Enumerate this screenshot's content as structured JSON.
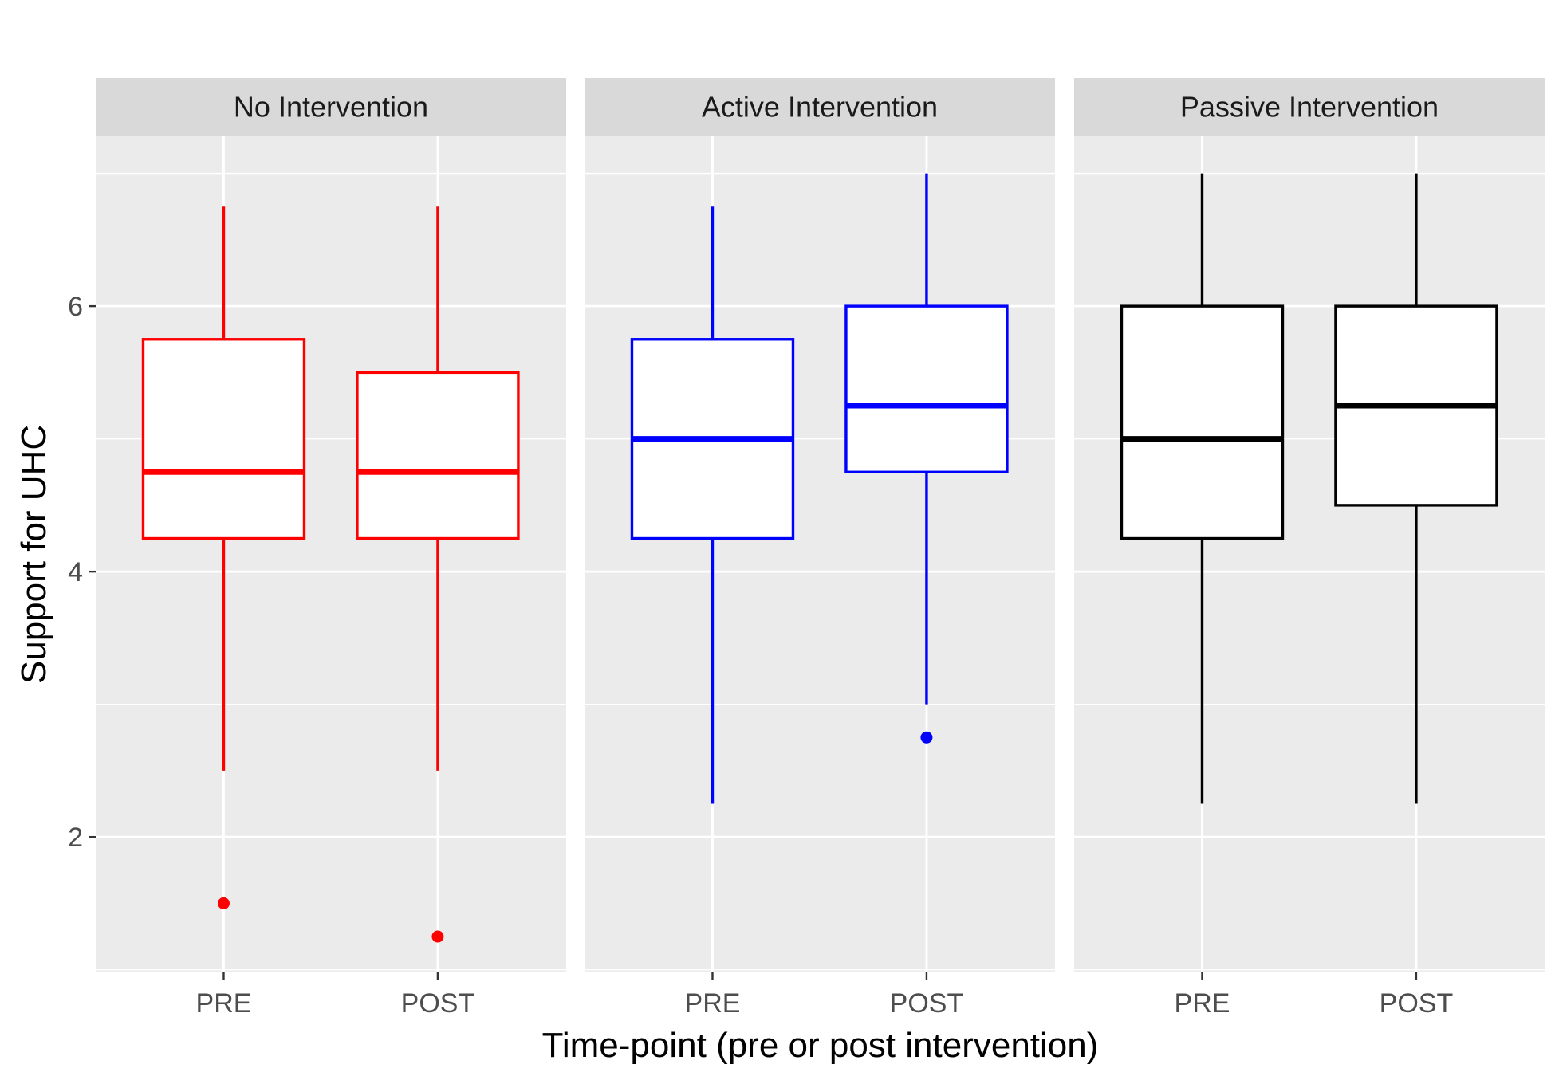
{
  "chart_data": {
    "type": "boxplot",
    "xlabel": "Time-point (pre or post intervention)",
    "ylabel": "Support for UHC",
    "ylim": [
      0.98,
      7.28
    ],
    "yticks": [
      2,
      4,
      6
    ],
    "categories": [
      "PRE",
      "POST"
    ],
    "grid": true,
    "legend": "none",
    "panels": [
      {
        "name": "No Intervention",
        "color": "#ff0000",
        "boxes": [
          {
            "category": "PRE",
            "min": 2.5,
            "q1": 4.25,
            "median": 4.75,
            "q3": 5.75,
            "max": 6.75,
            "outliers": [
              1.5
            ]
          },
          {
            "category": "POST",
            "min": 2.5,
            "q1": 4.25,
            "median": 4.75,
            "q3": 5.5,
            "max": 6.75,
            "outliers": [
              1.25
            ]
          }
        ]
      },
      {
        "name": "Active Intervention",
        "color": "#0000ff",
        "boxes": [
          {
            "category": "PRE",
            "min": 2.25,
            "q1": 4.25,
            "median": 5.0,
            "q3": 5.75,
            "max": 6.75,
            "outliers": []
          },
          {
            "category": "POST",
            "min": 3.0,
            "q1": 4.75,
            "median": 5.25,
            "q3": 6.0,
            "max": 7.0,
            "outliers": [
              2.75
            ]
          }
        ]
      },
      {
        "name": "Passive Intervention",
        "color": "#000000",
        "boxes": [
          {
            "category": "PRE",
            "min": 2.25,
            "q1": 4.25,
            "median": 5.0,
            "q3": 6.0,
            "max": 7.0,
            "outliers": []
          },
          {
            "category": "POST",
            "min": 2.25,
            "q1": 4.5,
            "median": 5.25,
            "q3": 6.0,
            "max": 7.0,
            "outliers": []
          }
        ]
      }
    ]
  }
}
